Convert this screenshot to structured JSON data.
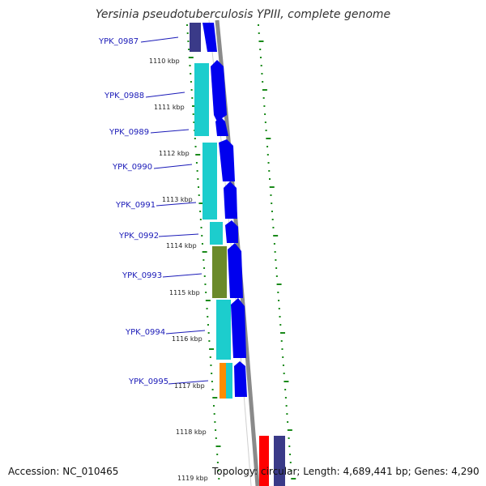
{
  "title": "Yersinia pseudotuberculosis YPIII, complete genome",
  "footer": {
    "accession": "Accession: NC_010465",
    "topology": "Topology: circular; Length: 4,689,441 bp; Genes: 4,290"
  },
  "colors": {
    "backbone": "#8a8a8a",
    "cds_arrow": "#0000ee",
    "dark_arrow": "#3a3a88",
    "cyan": "#1ccdcd",
    "olive": "#6b8a2a",
    "orange": "#ff8c00",
    "red": "#ff0000",
    "ticks": "#1a8a1a",
    "label": "#1a1ab8"
  },
  "genes": [
    {
      "id": "YPK_0987",
      "color": "navy"
    },
    {
      "id": "YPK_0988",
      "color": "cyan"
    },
    {
      "id": "YPK_0989",
      "color": "cyan"
    },
    {
      "id": "YPK_0990",
      "color": "cyan"
    },
    {
      "id": "YPK_0991",
      "color": "cyan"
    },
    {
      "id": "YPK_0992",
      "color": "cyan"
    },
    {
      "id": "YPK_0993",
      "color": "olive"
    },
    {
      "id": "YPK_0994",
      "color": "cyan"
    },
    {
      "id": "YPK_0995",
      "color": "orange"
    }
  ],
  "ticks": [
    "1110 kbp",
    "1111 kbp",
    "1112 kbp",
    "1113 kbp",
    "1114 kbp",
    "1115 kbp",
    "1116 kbp",
    "1117 kbp",
    "1118 kbp",
    "1119 kbp"
  ]
}
